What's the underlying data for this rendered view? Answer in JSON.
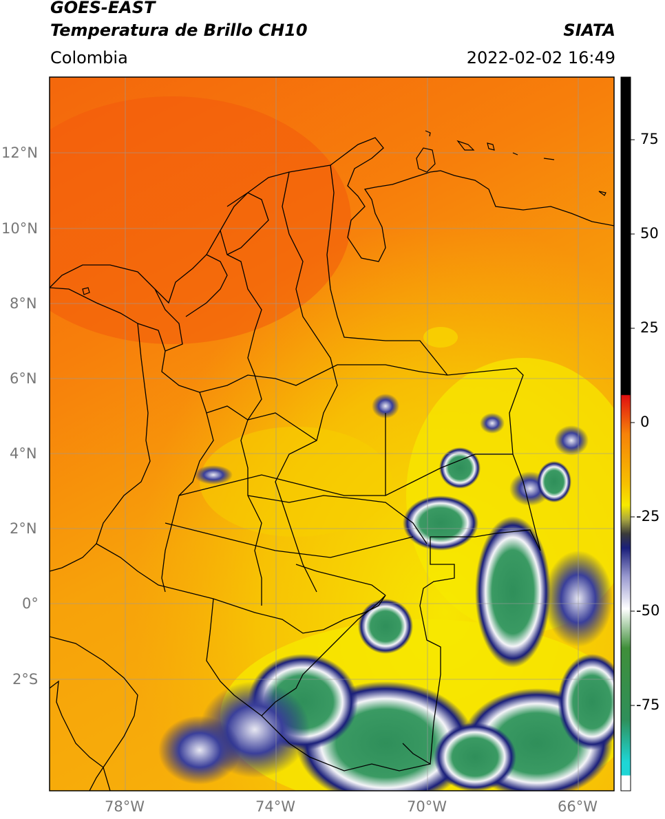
{
  "header": {
    "satellite": "GOES-EAST",
    "product": "Temperatura de Brillo CH10",
    "region": "Colombia",
    "organization": "SIATA",
    "timestamp": "2022-02-02 16:49"
  },
  "map": {
    "lat_labels": [
      "12°N",
      "10°N",
      "8°N",
      "6°N",
      "4°N",
      "2°N",
      "0°",
      "2°S"
    ],
    "lon_labels": [
      "78°W",
      "74°W",
      "70°W",
      "66°W"
    ],
    "lon_range": [
      -80,
      -65
    ],
    "lat_range": [
      -5.2,
      14
    ]
  },
  "colorbar": {
    "ticks": [
      "75",
      "50",
      "25",
      "0",
      "-25",
      "-50",
      "-75"
    ],
    "range": [
      -100,
      90
    ],
    "colors": {
      "hot": "#000000",
      "red": "#e01010",
      "orange": "#f6820a",
      "yellow": "#f7e900",
      "navy": "#1a1f7a",
      "white": "#f4f4f8",
      "green": "#2f8f5a",
      "cyan": "#1fd6d6"
    }
  }
}
